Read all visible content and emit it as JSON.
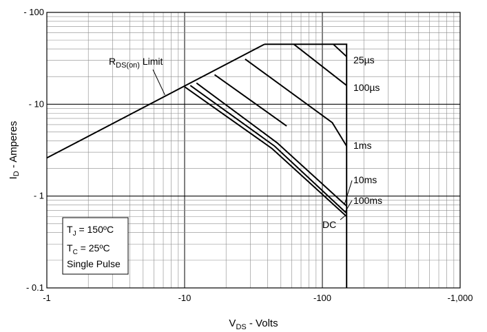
{
  "chart_data": {
    "type": "line",
    "title": "",
    "xlabel": "V",
    "xlabel_sub": "DS",
    "xlabel_rest": " - Volts",
    "ylabel": "I",
    "ylabel_sub": "D",
    "ylabel_rest": " - Amperes",
    "x_scale": "log",
    "y_scale": "log",
    "xlim": [
      1,
      1000
    ],
    "ylim": [
      0.1,
      100
    ],
    "x_ticks": [
      1,
      10,
      100,
      1000
    ],
    "x_tick_labels": [
      "-1",
      "-10",
      "-100",
      "-1,000"
    ],
    "y_ticks": [
      0.1,
      1,
      10,
      100
    ],
    "y_tick_labels": [
      "- 0.1",
      "- 1",
      "- 10",
      "- 100"
    ],
    "grid": true,
    "series": [
      {
        "name": "RDS(on) Limit",
        "x": [
          1,
          38
        ],
        "y": [
          2.6,
          45
        ]
      },
      {
        "name": "25µs",
        "x": [
          38,
          150,
          150
        ],
        "y": [
          45,
          45,
          0.1
        ]
      },
      {
        "name": "",
        "x": [
          120,
          150
        ],
        "y": [
          45,
          33
        ]
      },
      {
        "name": "100µs",
        "x": [
          62,
          150
        ],
        "y": [
          45,
          16
        ]
      },
      {
        "name": "1ms",
        "x": [
          27.5,
          118,
          150
        ],
        "y": [
          31,
          6.3,
          3.5
        ]
      },
      {
        "name": "",
        "x": [
          16.5,
          55
        ],
        "y": [
          21,
          5.8
        ]
      },
      {
        "name": "10ms",
        "x": [
          12.2,
          47,
          150
        ],
        "y": [
          17,
          3.8,
          0.78
        ]
      },
      {
        "name": "100ms",
        "x": [
          11,
          45,
          150
        ],
        "y": [
          16,
          3.5,
          0.65
        ]
      },
      {
        "name": "DC",
        "x": [
          10,
          43,
          150
        ],
        "y": [
          15.5,
          3.3,
          0.6
        ]
      }
    ],
    "annotations": {
      "rds_main": "R",
      "rds_sub": "DS(on)",
      "rds_rest": " Limit",
      "t25": "25µs",
      "t100us": "100µs",
      "t1ms": "1ms",
      "t10ms": "10ms",
      "t100ms": "100ms",
      "dc": "DC"
    },
    "conditions": {
      "tj_main": "T",
      "tj_sub": "J",
      "tj_rest": " = 150ºC",
      "tc_main": "T",
      "tc_sub": "C",
      "tc_rest": " = 25ºC",
      "pulse": "Single Pulse"
    }
  }
}
